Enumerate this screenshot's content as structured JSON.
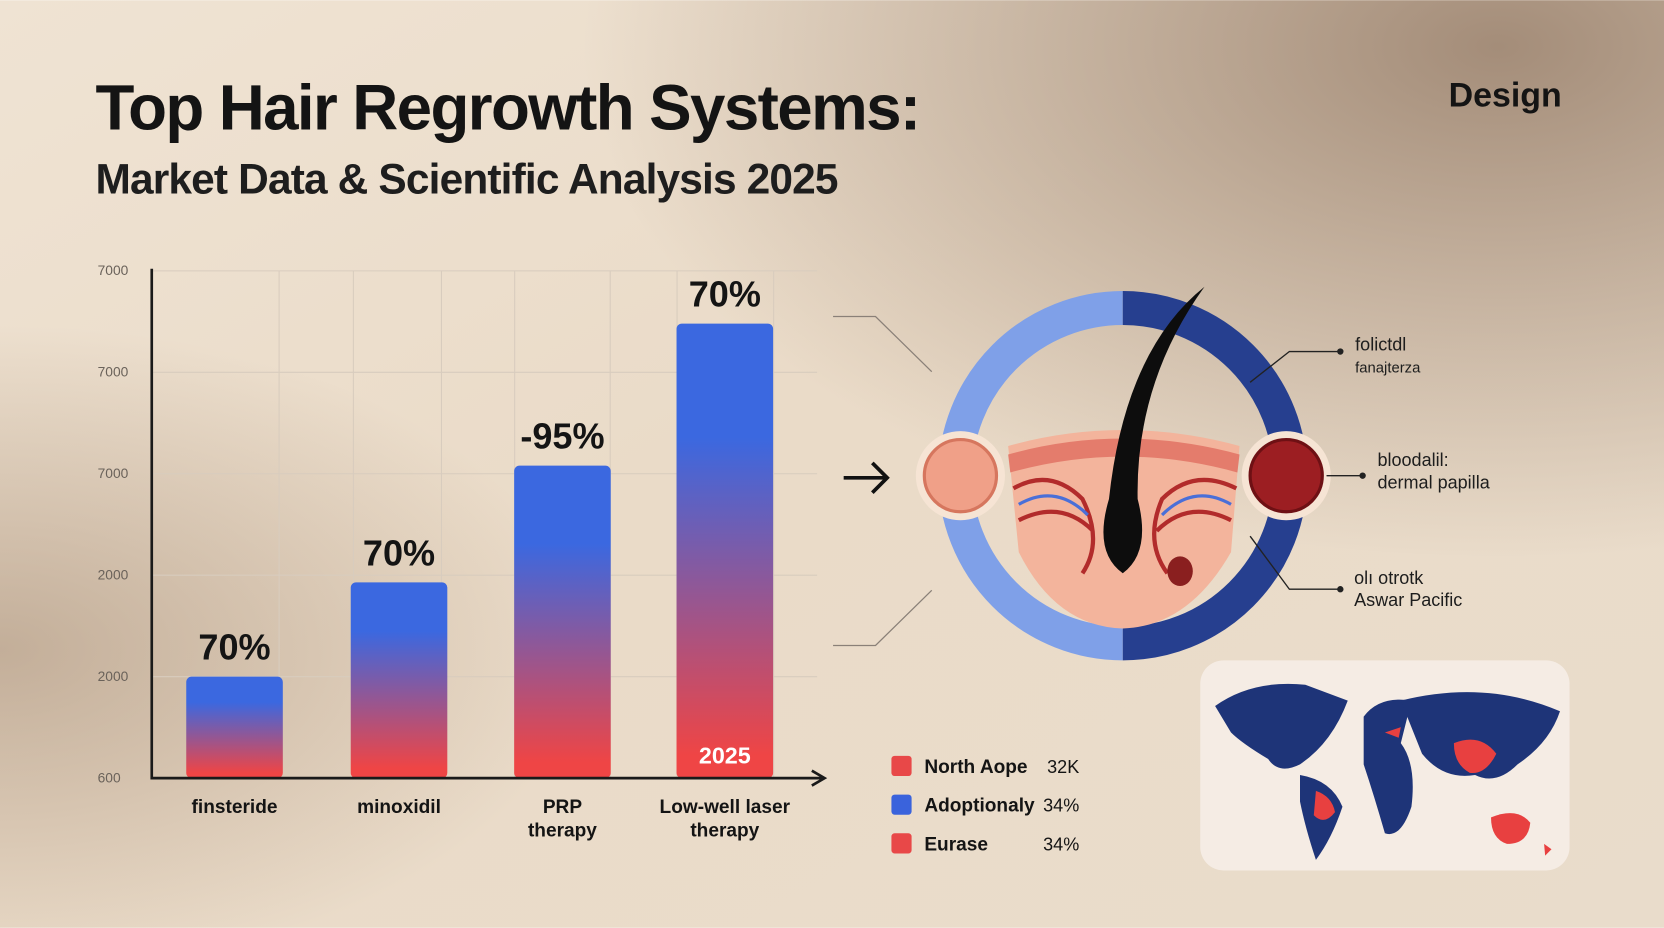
{
  "header": {
    "title": "Top Hair Regrowth Systems:",
    "subtitle": "Market Data & Scientific Analysis 2025",
    "brand": "Design"
  },
  "chart_data": {
    "type": "bar",
    "categories": [
      "finsteride",
      "minoxidil",
      "PRP therapy",
      "Low-well laser therapy"
    ],
    "values": [
      1.0,
      1.93,
      3.08,
      4.48
    ],
    "annotations": [
      "70%",
      "70%",
      "-95%",
      "70%"
    ],
    "bar_note": "2025",
    "ylim": [
      0,
      5
    ],
    "yticks": [
      {
        "value": 0,
        "label": "600"
      },
      {
        "value": 1,
        "label": "2000"
      },
      {
        "value": 2,
        "label": "2000"
      },
      {
        "value": 3,
        "label": "7000"
      },
      {
        "value": 4,
        "label": "7000"
      },
      {
        "value": 5,
        "label": "7000"
      }
    ],
    "colors": {
      "top": "#3b68e0",
      "bottom": "#ef4545"
    },
    "grid": true,
    "legend": [
      {
        "name": "North Aope",
        "value": "32K",
        "color": "#e84848"
      },
      {
        "name": "Adoptionaly",
        "value": "34%",
        "color": "#3a63dc"
      },
      {
        "name": "Eurase",
        "value": "34%",
        "color": "#e84848"
      }
    ]
  },
  "diagram": {
    "labels": [
      {
        "line1": "folictdl",
        "line2": "fanajterza"
      },
      {
        "line1": "bloodalil:",
        "line2": "dermal papilla"
      },
      {
        "line1": "olı otrotk",
        "line2": "Aswar Pacific"
      }
    ]
  }
}
